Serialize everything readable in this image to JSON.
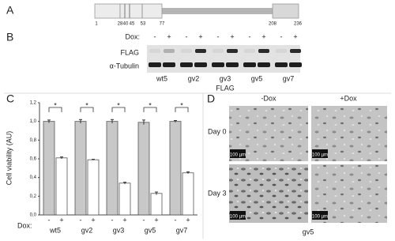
{
  "panel_a": {
    "label": "A",
    "positions": [
      1,
      28,
      40,
      45,
      53,
      77,
      208,
      236
    ]
  },
  "panel_b": {
    "label": "B",
    "dox_label": "Dox:",
    "dox_states": [
      "-",
      "+",
      "-",
      "+",
      "-",
      "+",
      "-",
      "+",
      "-",
      "+"
    ],
    "rows": [
      "FLAG",
      "α-Tubulin"
    ],
    "lanes": [
      "wt5",
      "gv2",
      "gv3",
      "gv5",
      "gv7"
    ],
    "footer": "FLAG"
  },
  "chart_data": {
    "type": "bar",
    "panel_label": "C",
    "y_label": "Cell viability (AU)",
    "x_prefix": "Dox:",
    "categories": [
      "wt5",
      "gv2",
      "gv3",
      "gv5",
      "gv7"
    ],
    "series": [
      {
        "name": "-",
        "color": "#c8c8c8",
        "values": [
          1.0,
          1.0,
          1.0,
          0.99,
          1.0
        ],
        "errors": [
          0.015,
          0.02,
          0.02,
          0.025,
          0.01
        ]
      },
      {
        "name": "+",
        "color": "#ffffff",
        "values": [
          0.61,
          0.59,
          0.34,
          0.23,
          0.45
        ],
        "errors": [
          0.01,
          0.005,
          0.01,
          0.015,
          0.01
        ]
      }
    ],
    "significance": [
      "*",
      "*",
      "*",
      "*",
      "*"
    ],
    "ylim": [
      0,
      1.2
    ],
    "yticks": [
      {
        "value": 0,
        "label": "0,0"
      },
      {
        "value": 0.2,
        "label": "0,2"
      },
      {
        "value": 0.4,
        "label": "0,4"
      },
      {
        "value": 0.6,
        "label": "0,6"
      },
      {
        "value": 0.8,
        "label": "0,8"
      },
      {
        "value": 1.0,
        "label": "1,0"
      },
      {
        "value": 1.2,
        "label": "1,2"
      }
    ]
  },
  "panel_d": {
    "label": "D",
    "columns": [
      "-Dox",
      "+Dox"
    ],
    "rows": [
      "Day 0",
      "Day 3"
    ],
    "scale_bars": [
      "100 µm",
      "100 µm",
      "100 µm",
      "100 µm"
    ],
    "caption": "gv5"
  }
}
